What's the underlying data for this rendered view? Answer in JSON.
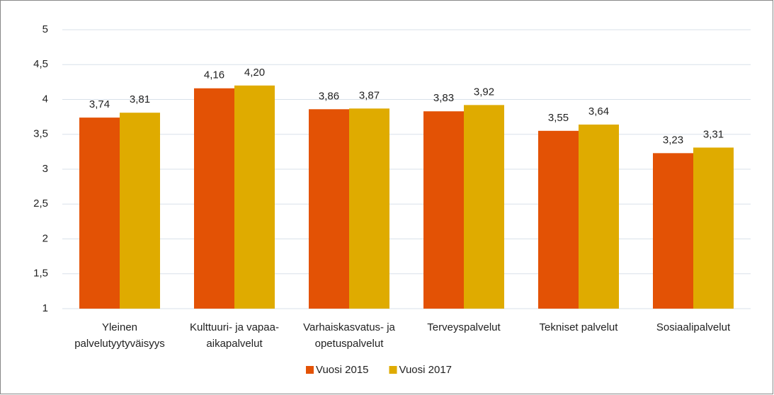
{
  "chart_data": {
    "type": "bar",
    "categories": [
      [
        "Yleinen",
        "palvelutyytyväisyys"
      ],
      [
        "Kulttuuri- ja vapaa-",
        "aikapalvelut"
      ],
      [
        "Varhaiskasvatus- ja",
        "opetuspalvelut"
      ],
      [
        "Terveyspalvelut"
      ],
      [
        "Tekniset palvelut"
      ],
      [
        "Sosiaalipalvelut"
      ]
    ],
    "series": [
      {
        "name": "Vuosi 2015",
        "color": "#e35205",
        "values": [
          3.74,
          4.16,
          3.86,
          3.83,
          3.55,
          3.23
        ],
        "value_labels": [
          "3,74",
          "4,16",
          "3,86",
          "3,83",
          "3,55",
          "3,23"
        ]
      },
      {
        "name": "Vuosi 2017",
        "color": "#dfab00",
        "values": [
          3.81,
          4.2,
          3.87,
          3.92,
          3.64,
          3.31
        ],
        "value_labels": [
          "3,81",
          "4,20",
          "3,87",
          "3,92",
          "3,64",
          "3,31"
        ]
      }
    ],
    "ylim": [
      1,
      5
    ],
    "yticks": [
      1,
      {
        "value": 1.5,
        "label": "1,5"
      },
      2,
      {
        "value": 2.5,
        "label": "2,5"
      },
      3,
      {
        "value": 3.5,
        "label": "3,5"
      },
      4,
      {
        "value": 4.5,
        "label": "4,5"
      },
      5
    ],
    "grid": true,
    "legend": "bottom"
  }
}
